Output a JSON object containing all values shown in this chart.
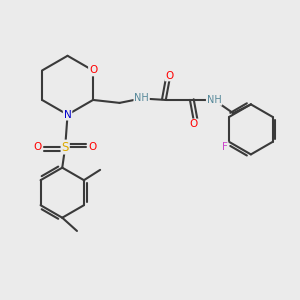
{
  "background_color": "#ebebeb",
  "bond_color": "#3a3a3a",
  "atom_colors": {
    "O": "#ff0000",
    "N": "#0000cc",
    "S": "#ddaa00",
    "F": "#cc44cc",
    "H": "#558899",
    "C": "#3a3a3a"
  },
  "figsize": [
    3.0,
    3.0
  ],
  "dpi": 100
}
